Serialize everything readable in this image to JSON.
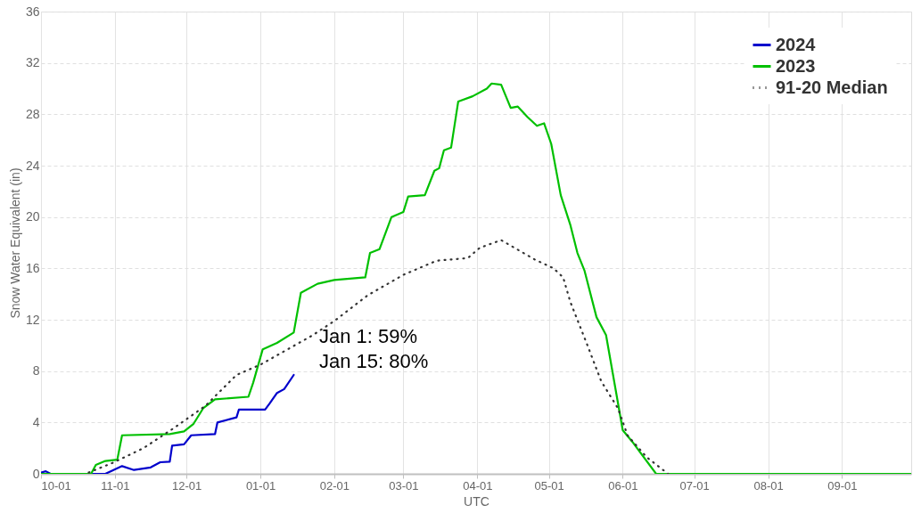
{
  "chart_data": {
    "type": "line",
    "xlabel": "UTC",
    "ylabel": "Snow Water Equivalent (in)",
    "xlim": [
      "2023-10-01",
      "2024-09-30"
    ],
    "xticks": [
      {
        "value": "2023-10-01",
        "label": "10-01"
      },
      {
        "value": "2023-11-01",
        "label": "11-01"
      },
      {
        "value": "2023-12-01",
        "label": "12-01"
      },
      {
        "value": "2024-01-01",
        "label": "01-01"
      },
      {
        "value": "2024-02-01",
        "label": "02-01"
      },
      {
        "value": "2024-03-01",
        "label": "03-01"
      },
      {
        "value": "2024-04-01",
        "label": "04-01"
      },
      {
        "value": "2024-05-01",
        "label": "05-01"
      },
      {
        "value": "2024-06-01",
        "label": "06-01"
      },
      {
        "value": "2024-07-01",
        "label": "07-01"
      },
      {
        "value": "2024-08-01",
        "label": "08-01"
      },
      {
        "value": "2024-09-01",
        "label": "09-01"
      }
    ],
    "ylim": [
      0,
      36
    ],
    "yticks": [
      0,
      4,
      8,
      12,
      16,
      20,
      24,
      28,
      32,
      36
    ],
    "grid": true,
    "legend": "top right",
    "annotations": [
      "Jan 1:   59%",
      "Jan 15: 80%"
    ],
    "series": [
      {
        "name": "2024",
        "color": "#0000cc",
        "line_style": "solid",
        "x": [
          "2023-10-01",
          "2023-10-03",
          "2023-10-05",
          "2023-10-28",
          "2023-11-04",
          "2023-11-09",
          "2023-11-16",
          "2023-11-20",
          "2023-11-24",
          "2023-11-25",
          "2023-11-30",
          "2023-12-03",
          "2023-12-13",
          "2023-12-14",
          "2023-12-22",
          "2023-12-23",
          "2024-01-03",
          "2024-01-05",
          "2024-01-08",
          "2024-01-11",
          "2024-01-15"
        ],
        "values": [
          0.1,
          0.2,
          0,
          0,
          0.6,
          0.3,
          0.5,
          0.9,
          0.95,
          2.2,
          2.3,
          3.0,
          3.1,
          4.0,
          4.4,
          5.0,
          5.0,
          5.5,
          6.3,
          6.6,
          7.7
        ]
      },
      {
        "name": "2023",
        "color": "#00c000",
        "line_style": "solid",
        "x": [
          "2023-10-01",
          "2023-10-22",
          "2023-10-24",
          "2023-10-28",
          "2023-11-02",
          "2023-11-04",
          "2023-11-24",
          "2023-11-30",
          "2023-12-04",
          "2023-12-08",
          "2023-12-13",
          "2023-12-27",
          "2023-12-29",
          "2024-01-02",
          "2024-01-08",
          "2024-01-15",
          "2024-01-18",
          "2024-01-25",
          "2024-02-01",
          "2024-02-14",
          "2024-02-16",
          "2024-02-20",
          "2024-02-25",
          "2024-03-01",
          "2024-03-03",
          "2024-03-10",
          "2024-03-14",
          "2024-03-16",
          "2024-03-18",
          "2024-03-21",
          "2024-03-24",
          "2024-03-30",
          "2024-04-05",
          "2024-04-07",
          "2024-04-11",
          "2024-04-15",
          "2024-04-18",
          "2024-04-22",
          "2024-04-26",
          "2024-04-29",
          "2024-05-02",
          "2024-05-06",
          "2024-05-10",
          "2024-05-13",
          "2024-05-16",
          "2024-05-21",
          "2024-05-25",
          "2024-06-01",
          "2024-06-05",
          "2024-06-15",
          "2024-09-30"
        ],
        "values": [
          0,
          0,
          0.7,
          1.0,
          1.1,
          3.0,
          3.1,
          3.3,
          3.9,
          5.1,
          5.8,
          6.0,
          7.1,
          9.7,
          10.2,
          11.0,
          14.1,
          14.8,
          15.1,
          15.3,
          17.2,
          17.5,
          20.0,
          20.4,
          21.6,
          21.7,
          23.6,
          23.8,
          25.2,
          25.4,
          29.0,
          29.4,
          30.0,
          30.4,
          30.3,
          28.5,
          28.6,
          27.8,
          27.1,
          27.3,
          25.7,
          21.7,
          19.4,
          17.2,
          15.8,
          12.2,
          10.8,
          3.4,
          2.5,
          0,
          0
        ]
      },
      {
        "name": "91-20 Median",
        "color": "#333333",
        "line_style": "dotted",
        "x": [
          "2023-10-21",
          "2023-10-31",
          "2023-11-13",
          "2023-11-26",
          "2023-12-09",
          "2023-12-22",
          "2024-01-01",
          "2024-01-23",
          "2024-02-01",
          "2024-02-15",
          "2024-03-01",
          "2024-03-15",
          "2024-03-28",
          "2024-04-02",
          "2024-04-11",
          "2024-04-25",
          "2024-05-03",
          "2024-05-07",
          "2024-05-10",
          "2024-05-17",
          "2024-05-23",
          "2024-05-30",
          "2024-06-03",
          "2024-06-11",
          "2024-06-20"
        ],
        "values": [
          0.1,
          0.85,
          2.0,
          3.6,
          5.3,
          7.7,
          8.5,
          10.8,
          11.9,
          13.9,
          15.5,
          16.6,
          16.8,
          17.6,
          18.2,
          16.7,
          16.0,
          15.3,
          13.4,
          10.1,
          7.2,
          5.1,
          3.0,
          1.3,
          0
        ]
      }
    ]
  }
}
